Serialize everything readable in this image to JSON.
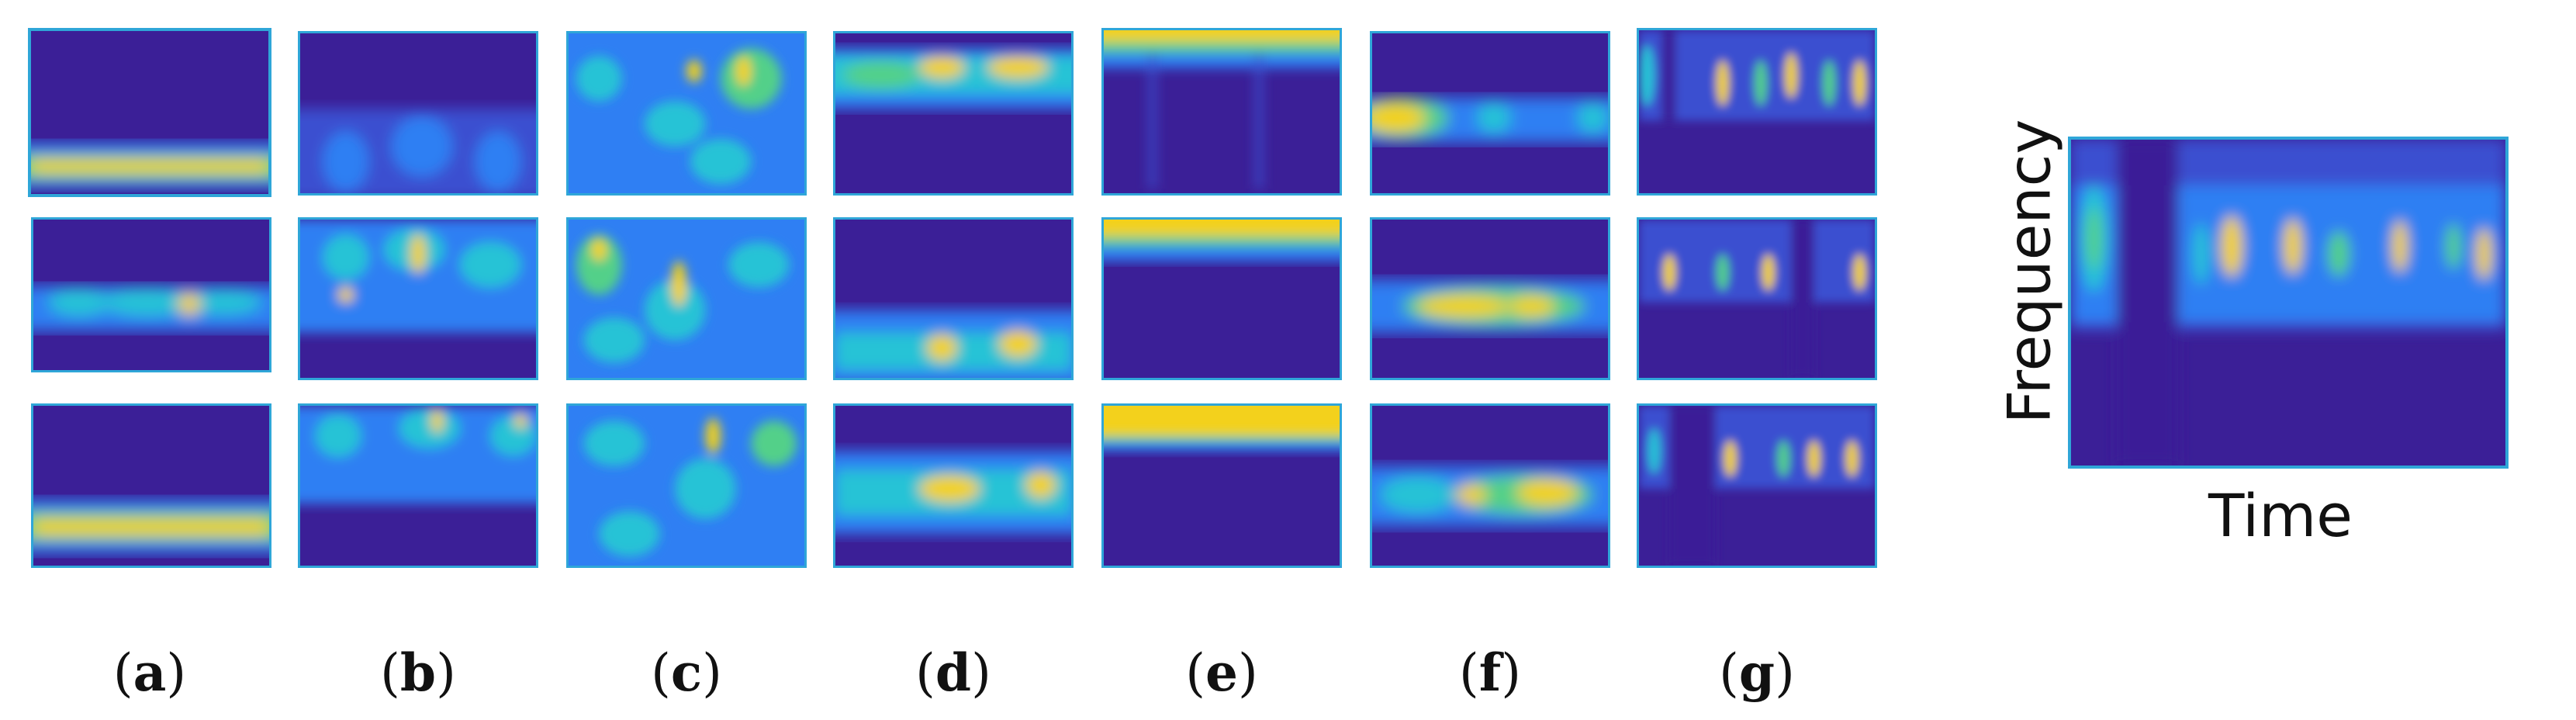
{
  "column_labels": [
    "a",
    "b",
    "c",
    "d",
    "e",
    "f",
    "g"
  ],
  "axis_labels": {
    "x": "Time",
    "y": "Frequency"
  },
  "colors": {
    "background": "#3b1f97",
    "mid": "#2f7ff3",
    "cyan": "#26c3d6",
    "green": "#53d089",
    "yellow": "#f3d11b",
    "border": "#2fa6d8"
  },
  "panels": [
    {
      "id": "a1",
      "desc": "horizontal yellow band near bottom"
    },
    {
      "id": "a2",
      "desc": "cyan band mid with yellow spot"
    },
    {
      "id": "a3",
      "desc": "yellow band near bottom"
    },
    {
      "id": "b1",
      "desc": "faint blue ripples lower half"
    },
    {
      "id": "b2",
      "desc": "speckled cyan with yellow spots"
    },
    {
      "id": "b3",
      "desc": "speckled cyan upper half"
    },
    {
      "id": "c1",
      "desc": "dense speckle with yellow spots"
    },
    {
      "id": "c2",
      "desc": "dense speckle with yellow spots"
    },
    {
      "id": "c3",
      "desc": "dense speckle"
    },
    {
      "id": "d1",
      "desc": "green-yellow band near top"
    },
    {
      "id": "d2",
      "desc": "band near bottom with yellow spots"
    },
    {
      "id": "d3",
      "desc": "band in middle with yellow spots"
    },
    {
      "id": "e1",
      "desc": "yellow band at top edge"
    },
    {
      "id": "e2",
      "desc": "yellow band at top edge"
    },
    {
      "id": "e3",
      "desc": "thick yellow band at top edge"
    },
    {
      "id": "f1",
      "desc": "yellow blob left, cyan spots"
    },
    {
      "id": "f2",
      "desc": "yellow elongated blob center"
    },
    {
      "id": "f3",
      "desc": "yellow blobs center-right"
    },
    {
      "id": "g1",
      "desc": "vertical streaks top half"
    },
    {
      "id": "g2",
      "desc": "vertical streaks top half"
    },
    {
      "id": "g3",
      "desc": "vertical streaks top half"
    },
    {
      "id": "big",
      "desc": "enlarged spectrogram with vertical streaks"
    }
  ]
}
